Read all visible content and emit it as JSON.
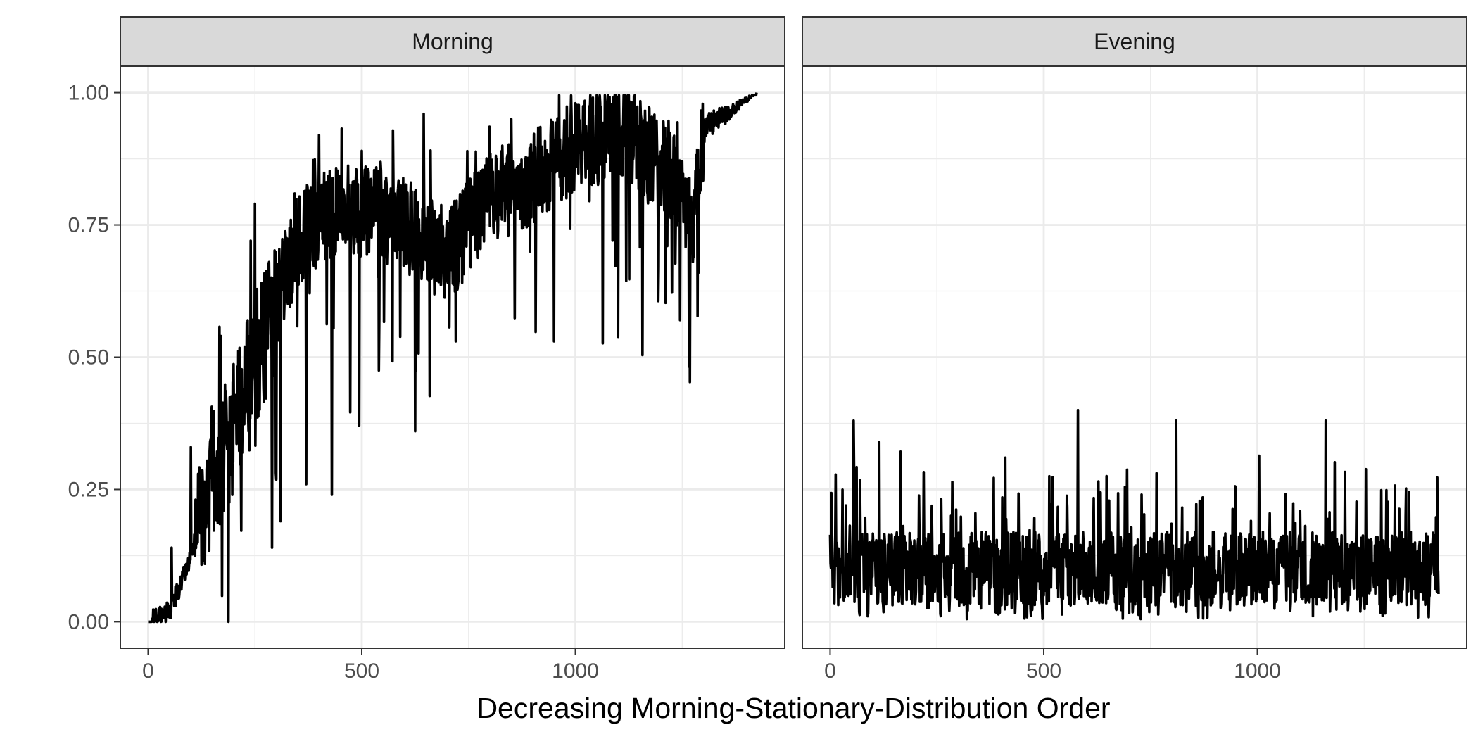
{
  "chart_data": {
    "type": "line",
    "xlabel": "Decreasing Morning-Stationary-Distribution Order",
    "ylabel": "",
    "xlim": [
      -65,
      1490
    ],
    "ylim": [
      -0.05,
      1.05
    ],
    "x_ticks": [
      0,
      500,
      1000
    ],
    "y_ticks": [
      0.0,
      0.25,
      0.5,
      0.75,
      1.0
    ],
    "y_tick_labels": [
      "0.00",
      "0.25",
      "0.50",
      "0.75",
      "1.00"
    ],
    "grid": true,
    "line_color": "#000000",
    "facets": [
      {
        "label": "Morning",
        "n_points": 1425,
        "trend_keypoints": [
          [
            0,
            0.0
          ],
          [
            50,
            0.02
          ],
          [
            100,
            0.12
          ],
          [
            150,
            0.28
          ],
          [
            200,
            0.36
          ],
          [
            250,
            0.5
          ],
          [
            300,
            0.6
          ],
          [
            350,
            0.72
          ],
          [
            400,
            0.76
          ],
          [
            500,
            0.78
          ],
          [
            600,
            0.75
          ],
          [
            700,
            0.69
          ],
          [
            800,
            0.8
          ],
          [
            900,
            0.84
          ],
          [
            1000,
            0.9
          ],
          [
            1100,
            0.93
          ],
          [
            1200,
            0.87
          ],
          [
            1280,
            0.77
          ],
          [
            1300,
            0.93
          ],
          [
            1425,
            1.0
          ]
        ],
        "peaks": [
          [
            55,
            0.14
          ],
          [
            100,
            0.33
          ],
          [
            170,
            0.54
          ],
          [
            240,
            0.72
          ],
          [
            250,
            0.79
          ],
          [
            400,
            0.92
          ],
          [
            500,
            0.89
          ],
          [
            645,
            0.96
          ],
          [
            850,
            0.95
          ],
          [
            1000,
            0.98
          ],
          [
            1120,
            0.99
          ]
        ],
        "dips": [
          [
            290,
            0.14
          ],
          [
            310,
            0.19
          ],
          [
            370,
            0.26
          ],
          [
            430,
            0.24
          ],
          [
            625,
            0.36
          ],
          [
            720,
            0.53
          ],
          [
            950,
            0.53
          ],
          [
            1245,
            0.57
          ],
          [
            1275,
            0.68
          ]
        ]
      },
      {
        "label": "Evening",
        "n_points": 1425,
        "typical_range": [
          0.03,
          0.2
        ],
        "peaks": [
          [
            55,
            0.38
          ],
          [
            115,
            0.34
          ],
          [
            410,
            0.31
          ],
          [
            580,
            0.4
          ],
          [
            810,
            0.38
          ],
          [
            1160,
            0.38
          ]
        ],
        "min": 0.0,
        "max": 0.4
      }
    ]
  }
}
